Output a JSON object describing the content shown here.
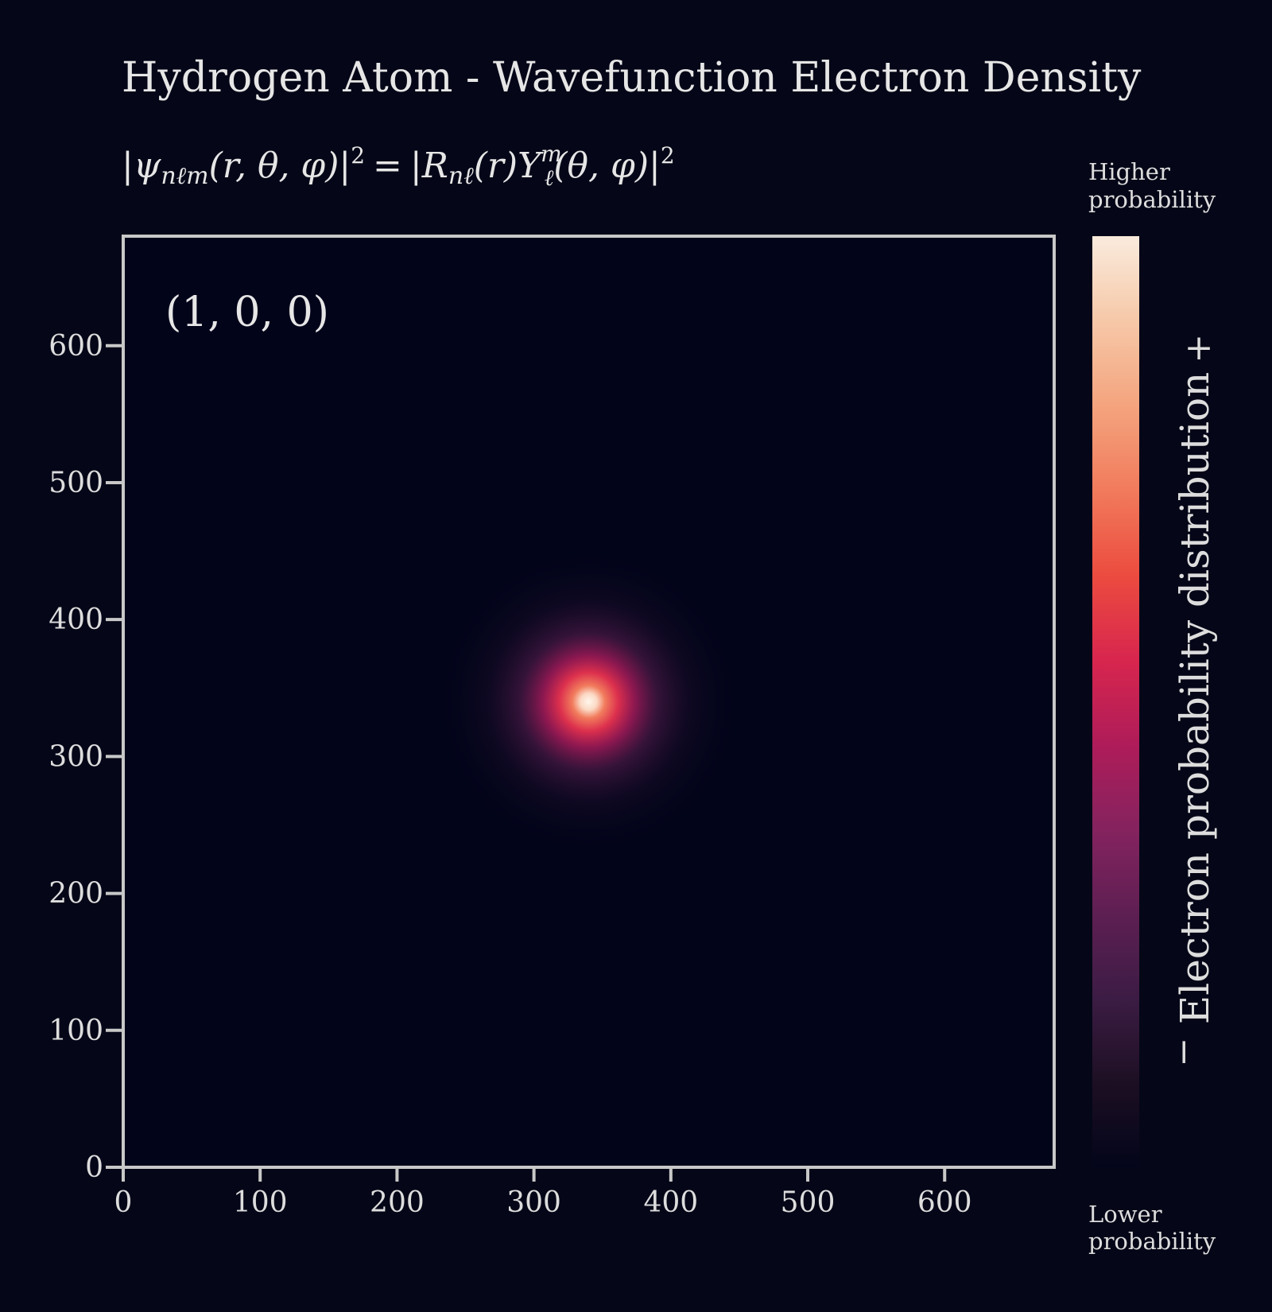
{
  "chart_data": {
    "type": "heatmap",
    "title": "Hydrogen Atom - Wavefunction Electron Density",
    "formula": {
      "lhs_psi": "ψ",
      "lhs_subscript": "nℓm",
      "lhs_args": "(r, θ, φ)",
      "exponent": "2",
      "equals": "=",
      "rhs_r": "R",
      "rhs_r_subscript": "nℓ",
      "rhs_r_args": "(r)",
      "rhs_y": "Y",
      "rhs_y_superscript": "m",
      "rhs_y_subscript": "ℓ",
      "rhs_y_args": "(θ, φ)"
    },
    "annotation": "(1, 0, 0)",
    "quantum_numbers": {
      "n": 1,
      "l": 0,
      "m": 0
    },
    "xlim": [
      0,
      680
    ],
    "ylim": [
      0,
      680
    ],
    "xticks": [
      0,
      100,
      200,
      300,
      400,
      500,
      600
    ],
    "yticks": [
      0,
      100,
      200,
      300,
      400,
      500,
      600
    ],
    "xlabel": "",
    "ylabel": "",
    "density_center": {
      "x": 340,
      "y": 340
    },
    "colormap": "rocket",
    "colormap_stops": [
      "#03051a",
      "#1d0f23",
      "#3c1c44",
      "#5e1f52",
      "#85235f",
      "#af1c59",
      "#d8264e",
      "#ec4c3f",
      "#f17b5c",
      "#f4a47e",
      "#f6c8a8",
      "#faebdd"
    ],
    "colorbar": {
      "label": "Electron probability distribution",
      "top_label_line1": "Higher",
      "top_label_line2": "probability",
      "bottom_label_line1": "Lower",
      "bottom_label_line2": "probability",
      "plus_symbol": "+",
      "minus_symbol": "−"
    }
  },
  "colors": {
    "background": "#050718",
    "plot_background": "#02041a",
    "axes": "#c8c8c8",
    "text": "#dddddd"
  }
}
